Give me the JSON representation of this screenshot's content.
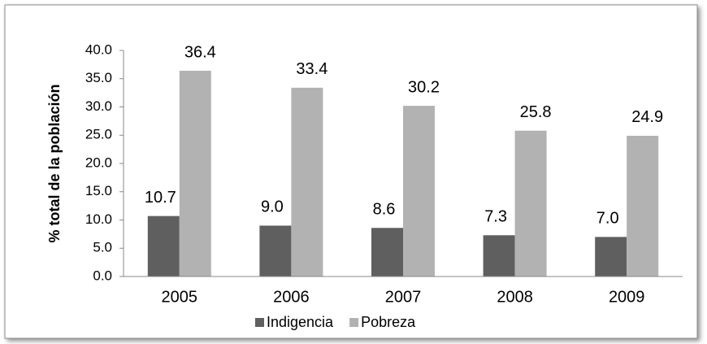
{
  "chart_data": {
    "type": "bar",
    "y_label": "% total de la población",
    "categories": [
      "2005",
      "2006",
      "2007",
      "2008",
      "2009"
    ],
    "series": [
      {
        "name": "Indigencia",
        "color": "#5f5f5f",
        "values": [
          10.7,
          9.0,
          8.6,
          7.3,
          7.0
        ],
        "value_labels": [
          "10.7",
          "9.0",
          "8.6",
          "7.3",
          "7.0"
        ]
      },
      {
        "name": "Pobreza",
        "color": "#b2b2b2",
        "values": [
          36.4,
          33.4,
          30.2,
          25.8,
          24.9
        ],
        "value_labels": [
          "36.4",
          "33.4",
          "30.2",
          "25.8",
          "24.9"
        ]
      }
    ],
    "ylim": [
      0,
      40
    ],
    "yticks": [
      {
        "value": 0,
        "label": "0.0"
      },
      {
        "value": 5,
        "label": "5.0"
      },
      {
        "value": 10,
        "label": "10.0"
      },
      {
        "value": 15,
        "label": "15.0"
      },
      {
        "value": 20,
        "label": "20.0"
      },
      {
        "value": 25,
        "label": "25.0"
      },
      {
        "value": 30,
        "label": "30.0"
      },
      {
        "value": 35,
        "label": "35.0"
      },
      {
        "value": 40,
        "label": "40.0"
      }
    ],
    "grid": false,
    "legend": "bottom"
  }
}
